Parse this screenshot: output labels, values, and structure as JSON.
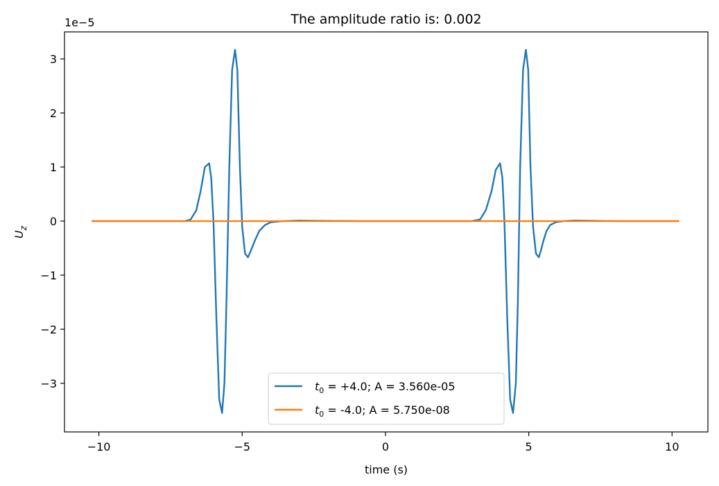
{
  "chart_data": {
    "type": "line",
    "title": "The amplitude ratio is: 0.002",
    "xlabel": "time (s)",
    "ylabel_main": "U",
    "ylabel_sub": "z",
    "offset_text": "1e−5",
    "xlim": [
      -11.2,
      11.25
    ],
    "ylim": [
      -3.9e-05,
      3.5e-05
    ],
    "x_ticks": [
      {
        "value": -10,
        "label": "−10"
      },
      {
        "value": -5,
        "label": "−5"
      },
      {
        "value": 0,
        "label": "0"
      },
      {
        "value": 5,
        "label": "5"
      },
      {
        "value": 10,
        "label": "10"
      }
    ],
    "y_ticks": [
      {
        "value": 3e-05,
        "label": "3"
      },
      {
        "value": 2e-05,
        "label": "2"
      },
      {
        "value": 1e-05,
        "label": "1"
      },
      {
        "value": 0,
        "label": "0"
      },
      {
        "value": -1e-05,
        "label": "−1"
      },
      {
        "value": -2e-05,
        "label": "−2"
      },
      {
        "value": -3e-05,
        "label": "−3"
      }
    ],
    "grid": false,
    "legend_placement": "lower center",
    "series": [
      {
        "name_main": "t",
        "name_sub": "0",
        "name_rest": " = +4.0; A = 3.560e-05",
        "color": "#1f77b4",
        "x": [
          -10.25,
          -7.0,
          -6.8,
          -6.6,
          -6.45,
          -6.3,
          -6.15,
          -6.08,
          -6.0,
          -5.9,
          -5.8,
          -5.7,
          -5.62,
          -5.55,
          -5.45,
          -5.35,
          -5.25,
          -5.17,
          -5.08,
          -5.0,
          -4.9,
          -4.8,
          -4.7,
          -4.55,
          -4.4,
          -4.2,
          -4.0,
          -3.6,
          -3.0,
          -2.5,
          -1.0,
          0.0,
          1.0,
          3.0,
          3.3,
          3.5,
          3.7,
          3.85,
          4.0,
          4.08,
          4.15,
          4.25,
          4.35,
          4.45,
          4.55,
          4.62,
          4.7,
          4.8,
          4.9,
          4.98,
          5.06,
          5.15,
          5.25,
          5.35,
          5.42,
          5.52,
          5.62,
          5.75,
          5.95,
          6.2,
          6.6,
          7.2,
          8.0,
          10.25
        ],
        "y": [
          0,
          0,
          3e-07,
          2e-06,
          5.5e-06,
          1e-05,
          1.07e-05,
          8e-06,
          0.0,
          -1.8e-05,
          -3.3e-05,
          -3.55e-05,
          -3e-05,
          -1.5e-05,
          1e-05,
          2.8e-05,
          3.17e-05,
          2.8e-05,
          1e-05,
          -1e-06,
          -6e-06,
          -6.7e-06,
          -5.5e-06,
          -3.5e-06,
          -1.8e-06,
          -7e-07,
          -2e-07,
          0.0,
          1e-07,
          5e-08,
          0,
          0,
          0,
          0,
          3e-07,
          2e-06,
          5.5e-06,
          9.5e-06,
          1.07e-05,
          8e-06,
          0.0,
          -1.8e-05,
          -3.3e-05,
          -3.55e-05,
          -3e-05,
          -1.5e-05,
          1e-05,
          2.8e-05,
          3.17e-05,
          2.8e-05,
          1e-05,
          -1e-06,
          -6e-06,
          -6.7e-06,
          -5.5e-06,
          -3.5e-06,
          -1.8e-06,
          -7e-07,
          -2e-07,
          0.0,
          1e-07,
          5e-08,
          0,
          0
        ]
      },
      {
        "name_main": "t",
        "name_sub": "0",
        "name_rest": " = -4.0; A = 5.750e-08",
        "color": "#ff7f0e",
        "x": [
          -10.25,
          10.25
        ],
        "y": [
          0,
          0
        ]
      }
    ]
  }
}
